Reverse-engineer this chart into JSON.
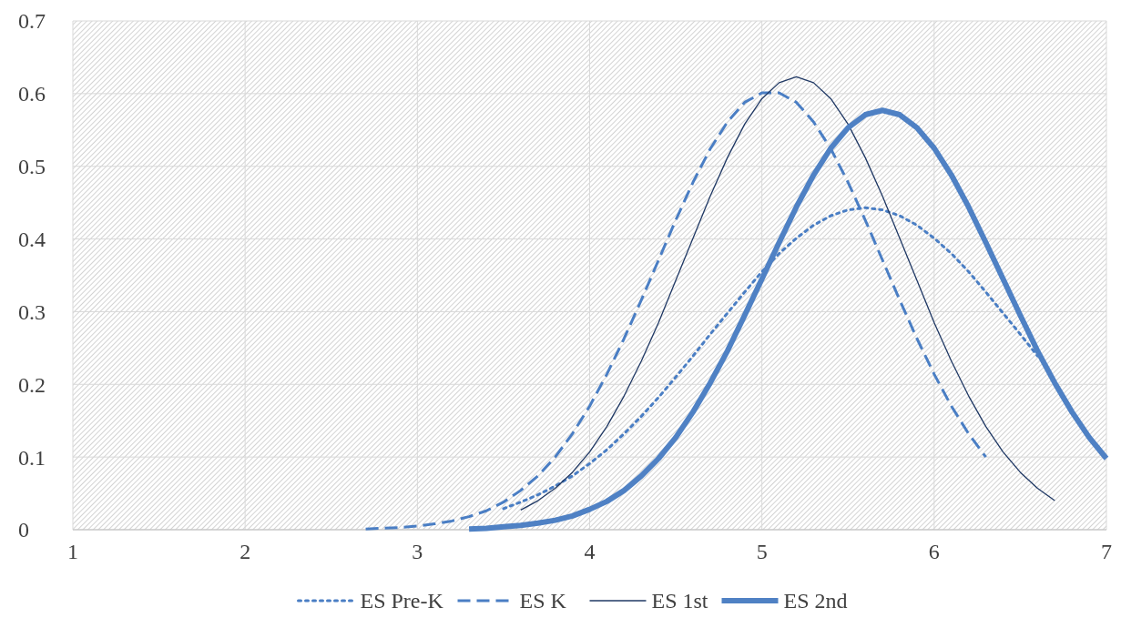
{
  "chart_data": {
    "type": "line",
    "xlim": [
      1,
      7
    ],
    "xticks": [
      1,
      2,
      3,
      4,
      5,
      6,
      7
    ],
    "ylim": [
      0,
      0.7
    ],
    "yticks": [
      0,
      0.1,
      0.2,
      0.3,
      0.4,
      0.5,
      0.6,
      0.7
    ],
    "grid": true,
    "legend": "bottom",
    "marker": "none",
    "series": [
      {
        "name": "ES Pre-K",
        "color": "#4a7ec4",
        "line_style": "dotted",
        "x": [
          3.5,
          3.6,
          3.7,
          3.8,
          3.9,
          4.0,
          4.1,
          4.2,
          4.3,
          4.4,
          4.5,
          4.6,
          4.7,
          4.8,
          4.9,
          5.0,
          5.1,
          5.2,
          5.3,
          5.4,
          5.5,
          5.6,
          5.7,
          5.8,
          5.9,
          6.0,
          6.1,
          6.2,
          6.3,
          6.4,
          6.5,
          6.6
        ],
        "values": [
          0.029,
          0.038,
          0.048,
          0.06,
          0.074,
          0.091,
          0.11,
          0.132,
          0.156,
          0.182,
          0.21,
          0.239,
          0.269,
          0.298,
          0.327,
          0.355,
          0.38,
          0.401,
          0.419,
          0.432,
          0.44,
          0.443,
          0.44,
          0.432,
          0.419,
          0.401,
          0.38,
          0.355,
          0.327,
          0.298,
          0.269,
          0.239
        ]
      },
      {
        "name": "ES K",
        "color": "#4a7ec4",
        "line_style": "dashed",
        "x": [
          2.7,
          2.8,
          2.9,
          3.0,
          3.1,
          3.2,
          3.3,
          3.4,
          3.5,
          3.6,
          3.7,
          3.8,
          3.9,
          4.0,
          4.1,
          4.2,
          4.3,
          4.4,
          4.5,
          4.6,
          4.7,
          4.8,
          4.9,
          5.0,
          5.1,
          5.2,
          5.3,
          5.4,
          5.5,
          5.6,
          5.7,
          5.8,
          5.9,
          6.0,
          6.1,
          6.2,
          6.3
        ],
        "values": [
          0.001,
          0.002,
          0.003,
          0.005,
          0.008,
          0.012,
          0.018,
          0.026,
          0.038,
          0.054,
          0.074,
          0.1,
          0.132,
          0.17,
          0.214,
          0.263,
          0.316,
          0.371,
          0.426,
          0.478,
          0.524,
          0.561,
          0.588,
          0.601,
          0.601,
          0.588,
          0.561,
          0.524,
          0.478,
          0.426,
          0.371,
          0.316,
          0.263,
          0.214,
          0.17,
          0.132,
          0.1
        ]
      },
      {
        "name": "ES 1st",
        "color": "#1f3864",
        "line_style": "solid",
        "x": [
          3.6,
          3.7,
          3.8,
          3.9,
          4.0,
          4.1,
          4.2,
          4.3,
          4.4,
          4.5,
          4.6,
          4.7,
          4.8,
          4.9,
          5.0,
          5.1,
          5.2,
          5.3,
          5.4,
          5.5,
          5.6,
          5.7,
          5.8,
          5.9,
          6.0,
          6.1,
          6.2,
          6.3,
          6.4,
          6.5,
          6.6,
          6.7
        ],
        "values": [
          0.027,
          0.04,
          0.057,
          0.079,
          0.107,
          0.142,
          0.184,
          0.232,
          0.285,
          0.343,
          0.401,
          0.459,
          0.512,
          0.558,
          0.593,
          0.615,
          0.623,
          0.615,
          0.593,
          0.558,
          0.512,
          0.459,
          0.401,
          0.343,
          0.285,
          0.232,
          0.184,
          0.142,
          0.107,
          0.079,
          0.057,
          0.04
        ]
      },
      {
        "name": "ES 2nd",
        "color": "#4f81c4",
        "line_style": "solid",
        "x": [
          3.3,
          3.4,
          3.5,
          3.6,
          3.7,
          3.8,
          3.9,
          4.0,
          4.1,
          4.2,
          4.3,
          4.4,
          4.5,
          4.6,
          4.7,
          4.8,
          4.9,
          5.0,
          5.1,
          5.2,
          5.3,
          5.4,
          5.5,
          5.6,
          5.7,
          5.8,
          5.9,
          6.0,
          6.1,
          6.2,
          6.3,
          6.4,
          6.5,
          6.6,
          6.7,
          6.8,
          6.9,
          7.0
        ],
        "values": [
          0.001,
          0.002,
          0.004,
          0.006,
          0.009,
          0.013,
          0.019,
          0.028,
          0.039,
          0.054,
          0.074,
          0.098,
          0.127,
          0.162,
          0.202,
          0.246,
          0.295,
          0.345,
          0.395,
          0.444,
          0.488,
          0.525,
          0.553,
          0.571,
          0.577,
          0.571,
          0.553,
          0.525,
          0.488,
          0.444,
          0.395,
          0.345,
          0.295,
          0.246,
          0.202,
          0.162,
          0.127,
          0.098
        ]
      }
    ]
  }
}
